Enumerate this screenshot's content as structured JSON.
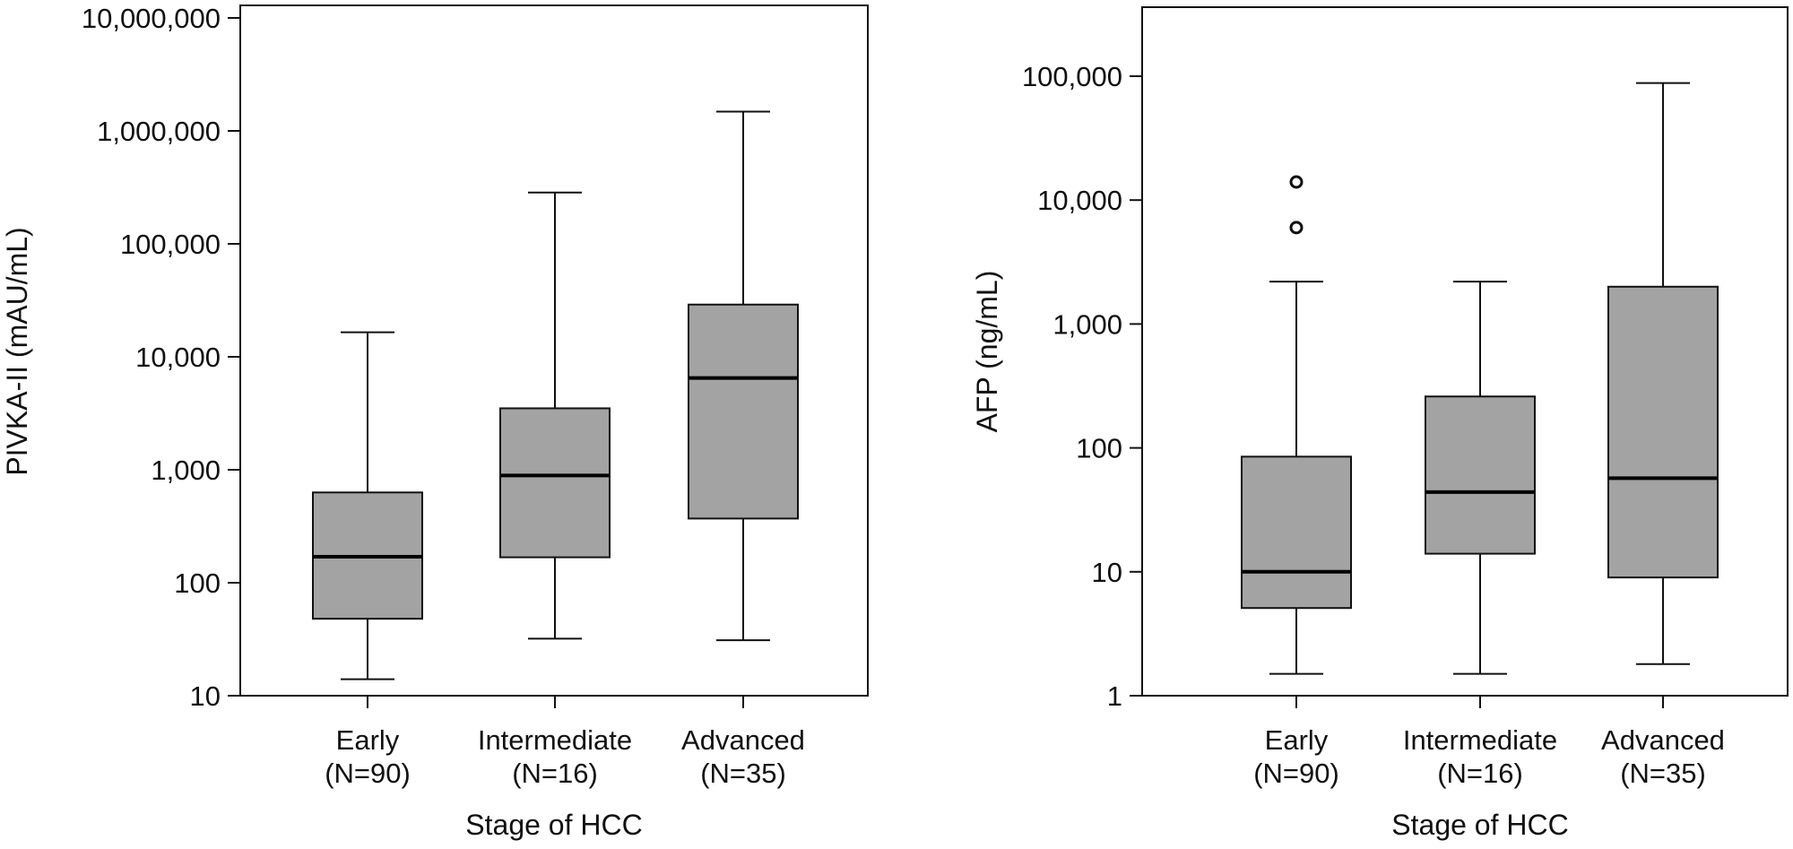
{
  "chart_data": [
    {
      "type": "box",
      "ylabel": "PIVKA-II (mAU/mL)",
      "xlabel": "Stage of HCC",
      "yscale": "log",
      "ylim": [
        10,
        10000000
      ],
      "yticks": [
        {
          "value": 10,
          "label": "10"
        },
        {
          "value": 100,
          "label": "100"
        },
        {
          "value": 1000,
          "label": "1,000"
        },
        {
          "value": 10000,
          "label": "10,000"
        },
        {
          "value": 100000,
          "label": "100,000"
        },
        {
          "value": 1000000,
          "label": "1,000,000"
        },
        {
          "value": 10000000,
          "label": "10,000,000"
        }
      ],
      "categories": [
        {
          "line1": "Early",
          "line2": "(N=90)"
        },
        {
          "line1": "Intermediate",
          "line2": "(N=16)"
        },
        {
          "line1": "Advanced",
          "line2": "(N=35)"
        }
      ],
      "boxes": [
        {
          "whisker_low": 14,
          "q1": 48,
          "median": 170,
          "q3": 630,
          "whisker_high": 16500,
          "outliers": []
        },
        {
          "whisker_low": 32,
          "q1": 168,
          "median": 890,
          "q3": 3500,
          "whisker_high": 285000,
          "outliers": []
        },
        {
          "whisker_low": 31,
          "q1": 370,
          "median": 6500,
          "q3": 29000,
          "whisker_high": 1480000,
          "outliers": []
        }
      ]
    },
    {
      "type": "box",
      "ylabel": "AFP (ng/mL)",
      "xlabel": "Stage of HCC",
      "yscale": "log",
      "ylim": [
        1,
        300000
      ],
      "yticks": [
        {
          "value": 1,
          "label": "1"
        },
        {
          "value": 10,
          "label": "10"
        },
        {
          "value": 100,
          "label": "100"
        },
        {
          "value": 1000,
          "label": "1,000"
        },
        {
          "value": 10000,
          "label": "10,000"
        },
        {
          "value": 100000,
          "label": "100,000"
        }
      ],
      "categories": [
        {
          "line1": "Early",
          "line2": "(N=90)"
        },
        {
          "line1": "Intermediate",
          "line2": "(N=16)"
        },
        {
          "line1": "Advanced",
          "line2": "(N=35)"
        }
      ],
      "boxes": [
        {
          "whisker_low": 1.5,
          "q1": 5.1,
          "median": 10,
          "q3": 85,
          "whisker_high": 2200,
          "outliers": [
            14000,
            6000
          ]
        },
        {
          "whisker_low": 1.5,
          "q1": 14,
          "median": 44,
          "q3": 260,
          "whisker_high": 2200,
          "outliers": []
        },
        {
          "whisker_low": 1.8,
          "q1": 9,
          "median": 57,
          "q3": 2000,
          "whisker_high": 88000,
          "outliers": []
        }
      ]
    }
  ]
}
